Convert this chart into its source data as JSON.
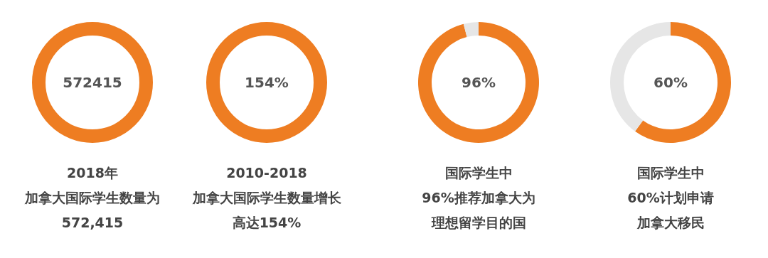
{
  "chart_data": [
    {
      "type": "pie",
      "categories": [
        null
      ],
      "values": [
        100
      ],
      "colors": [
        "#ee7d22"
      ],
      "annotations": [
        "572415",
        "2018年",
        "加拿大国际学生数量为",
        "572,415"
      ]
    },
    {
      "type": "pie",
      "categories": [
        null
      ],
      "values": [
        100
      ],
      "colors": [
        "#ee7d22"
      ],
      "annotations": [
        "154%",
        "2010-2018",
        "加拿大国际学生数量增长",
        "高达154%"
      ]
    },
    {
      "type": "donut",
      "categories": [
        null,
        null
      ],
      "values": [
        96,
        4
      ],
      "colors": [
        "#ee7d22",
        "#e6e6e6"
      ],
      "annotations": [
        "96%",
        "国际学生中",
        "96%推荐加拿大为",
        "理想留学目的国"
      ]
    },
    {
      "type": "donut",
      "categories": [
        null,
        null
      ],
      "values": [
        60,
        40
      ],
      "colors": [
        "#ee7d22",
        "#e6e6e6"
      ],
      "annotations": [
        "60%",
        "国际学生中",
        "60%计划申请",
        "加拿大移民"
      ]
    }
  ]
}
